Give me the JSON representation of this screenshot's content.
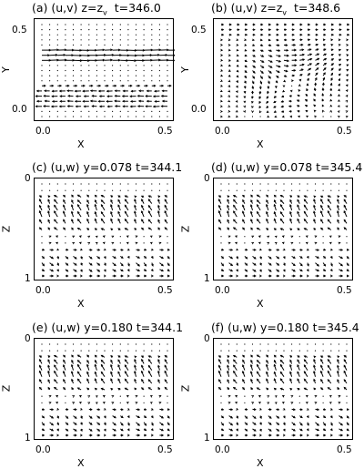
{
  "chart_data": [
    {
      "type": "vector-field",
      "title": "(a)  (u,v)  z=z",
      "title_sub": "v",
      "title_time": "  t=346.0",
      "xlabel": "X",
      "ylabel": "Y",
      "xticks": [
        "0.0",
        "0.5"
      ],
      "yticks": [
        "0.0",
        "0.5"
      ],
      "xlim": [
        0,
        0.5
      ],
      "ylim": [
        0,
        0.5
      ],
      "grid": [
        17,
        19
      ],
      "pattern": "bands"
    },
    {
      "type": "vector-field",
      "title": "(b)  (u,v)  z=z",
      "title_sub": "v",
      "title_time": "  t=348.6",
      "xlabel": "X",
      "ylabel": "Y",
      "xticks": [
        "0.0",
        "0.5"
      ],
      "yticks": [
        "0.0",
        "0.5"
      ],
      "xlim": [
        0,
        0.5
      ],
      "ylim": [
        0,
        0.5
      ],
      "grid": [
        17,
        19
      ],
      "pattern": "vortex"
    },
    {
      "type": "vector-field",
      "title": "(c)  (u,w)  y=0.078  t=344.1",
      "xlabel": "X",
      "ylabel": "Z",
      "xticks": [
        "0.0",
        "0.5"
      ],
      "yticks": [
        "0",
        "1"
      ],
      "xlim": [
        0,
        0.5
      ],
      "ylim": [
        1,
        0
      ],
      "grid": [
        17,
        15
      ],
      "pattern": "layers"
    },
    {
      "type": "vector-field",
      "title": "(d)  (u,w)  y=0.078  t=345.4",
      "xlabel": "X",
      "ylabel": "Z",
      "xticks": [
        "0.0",
        "0.5"
      ],
      "yticks": [
        "0",
        "1"
      ],
      "xlim": [
        0,
        0.5
      ],
      "ylim": [
        1,
        0
      ],
      "grid": [
        17,
        15
      ],
      "pattern": "layers"
    },
    {
      "type": "vector-field",
      "title": "(e)  (u,w)  y=0.180  t=344.1",
      "xlabel": "X",
      "ylabel": "Z",
      "xticks": [
        "0.0",
        "0.5"
      ],
      "yticks": [
        "0",
        "1"
      ],
      "xlim": [
        0,
        0.5
      ],
      "ylim": [
        1,
        0
      ],
      "grid": [
        17,
        15
      ],
      "pattern": "layers"
    },
    {
      "type": "vector-field",
      "title": "(f)  (u,w)  y=0.180  t=345.4",
      "xlabel": "X",
      "ylabel": "Z",
      "xticks": [
        "0.0",
        "0.5"
      ],
      "yticks": [
        "0",
        "1"
      ],
      "xlim": [
        0,
        0.5
      ],
      "ylim": [
        1,
        0
      ],
      "grid": [
        17,
        15
      ],
      "pattern": "layers"
    }
  ]
}
